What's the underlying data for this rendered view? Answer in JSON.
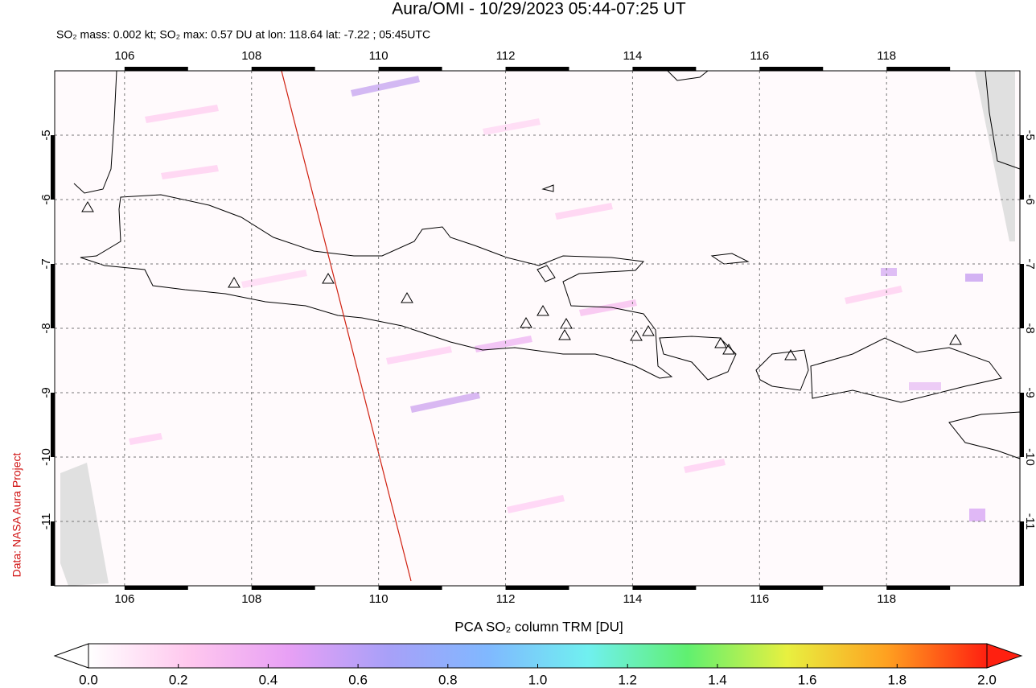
{
  "chart_data": {
    "type": "map",
    "title": "Aura/OMI - 10/29/2023 05:44-07:25 UT",
    "subtitle": "SO₂ mass: 0.002 kt; SO₂ max: 0.57 DU at lon: 118.64 lat: -7.22 ; 05:45UTC",
    "credit": "Data: NASA Aura Project",
    "xlim": [
      104.9,
      120.1
    ],
    "ylim": [
      -12,
      -4
    ],
    "xticks": [
      106,
      108,
      110,
      112,
      114,
      116,
      118
    ],
    "yticks": [
      -5,
      -6,
      -7,
      -8,
      -9,
      -10,
      -11
    ],
    "grid": true,
    "colorbar": {
      "label": "PCA SO₂ column TRM [DU]",
      "lim": [
        0,
        2
      ],
      "ticks": [
        {
          "value": 0,
          "label": "0.0"
        },
        {
          "value": 0.2,
          "label": "0.2"
        },
        {
          "value": 0.4,
          "label": "0.4"
        },
        {
          "value": 0.6,
          "label": "0.6"
        },
        {
          "value": 0.8,
          "label": "0.8"
        },
        {
          "value": 1,
          "label": "1.0"
        },
        {
          "value": 1.2,
          "label": "1.2"
        },
        {
          "value": 1.4,
          "label": "1.4"
        },
        {
          "value": 1.6,
          "label": "1.6"
        },
        {
          "value": 1.8,
          "label": "1.8"
        },
        {
          "value": 2,
          "label": "2.0"
        }
      ],
      "colors": [
        "#ffffff",
        "#ffc8ee",
        "#e8a0f5",
        "#a8a0f8",
        "#80b8ff",
        "#70f0f0",
        "#60f070",
        "#e8f040",
        "#ffa020",
        "#ff2010"
      ]
    }
  }
}
